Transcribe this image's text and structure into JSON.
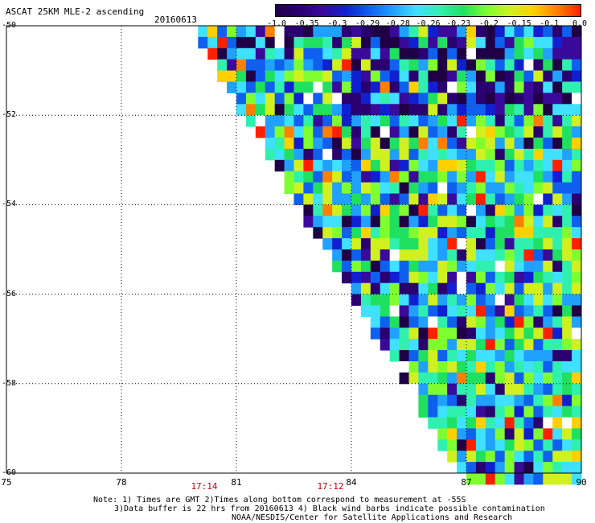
{
  "title": "ASCAT 25KM MLE-2 ascending",
  "date": "20160613",
  "colorbar": {
    "colors": [
      "#200044",
      "#2a0070",
      "#3a0a9a",
      "#1020d0",
      "#1060f0",
      "#20a0ff",
      "#40e0ff",
      "#30f0b0",
      "#20e060",
      "#80ff30",
      "#d0f020",
      "#ffd000",
      "#ff8000",
      "#ff2000"
    ],
    "ticks": [
      "-1.0",
      "-0.35",
      "-0.3",
      "-0.29",
      "-0.28",
      "-0.26",
      "-0.23",
      "-0.2",
      "-0.15",
      "-0.1",
      "0.0"
    ]
  },
  "axes": {
    "lat_ticks": [
      "-50",
      "-52",
      "-54",
      "-56",
      "-58",
      "-60"
    ],
    "lon_ticks": [
      "75",
      "78",
      "81",
      "84",
      "87",
      "90"
    ],
    "lon_range": [
      75,
      90
    ],
    "lat_range": [
      -50,
      -60
    ]
  },
  "times": [
    "17:14",
    "17:12"
  ],
  "notes": [
    "Note: 1) Times are GMT 2)Times along bottom correspond to measurement at -55S",
    "3)Data buffer is 22 hrs from 20160613 4) Black wind barbs indicate possible contamination",
    "NOAA/NESDIS/Center for Satellite Applications and Research"
  ],
  "swath": {
    "edge_top_lon": 80.0,
    "edge_bottom_lon": 87.0,
    "cell_deg": 0.25
  }
}
